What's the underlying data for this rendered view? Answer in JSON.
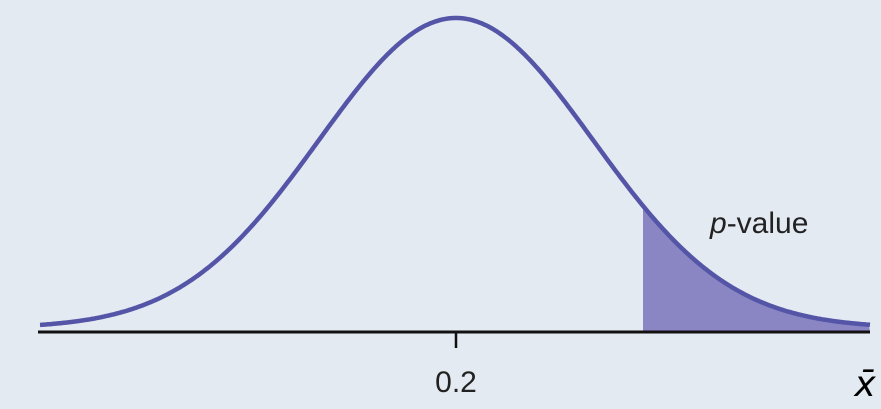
{
  "diagram": {
    "type": "normal-distribution-right-tail",
    "center_label": "0.2",
    "region_label_italic": "p",
    "region_label_rest": "-value",
    "axis_label": "x̄",
    "colors": {
      "background": "#e4eaf2",
      "curve": "#5555a8",
      "shaded_region": "#8a86c4",
      "axis": "#111111"
    }
  }
}
